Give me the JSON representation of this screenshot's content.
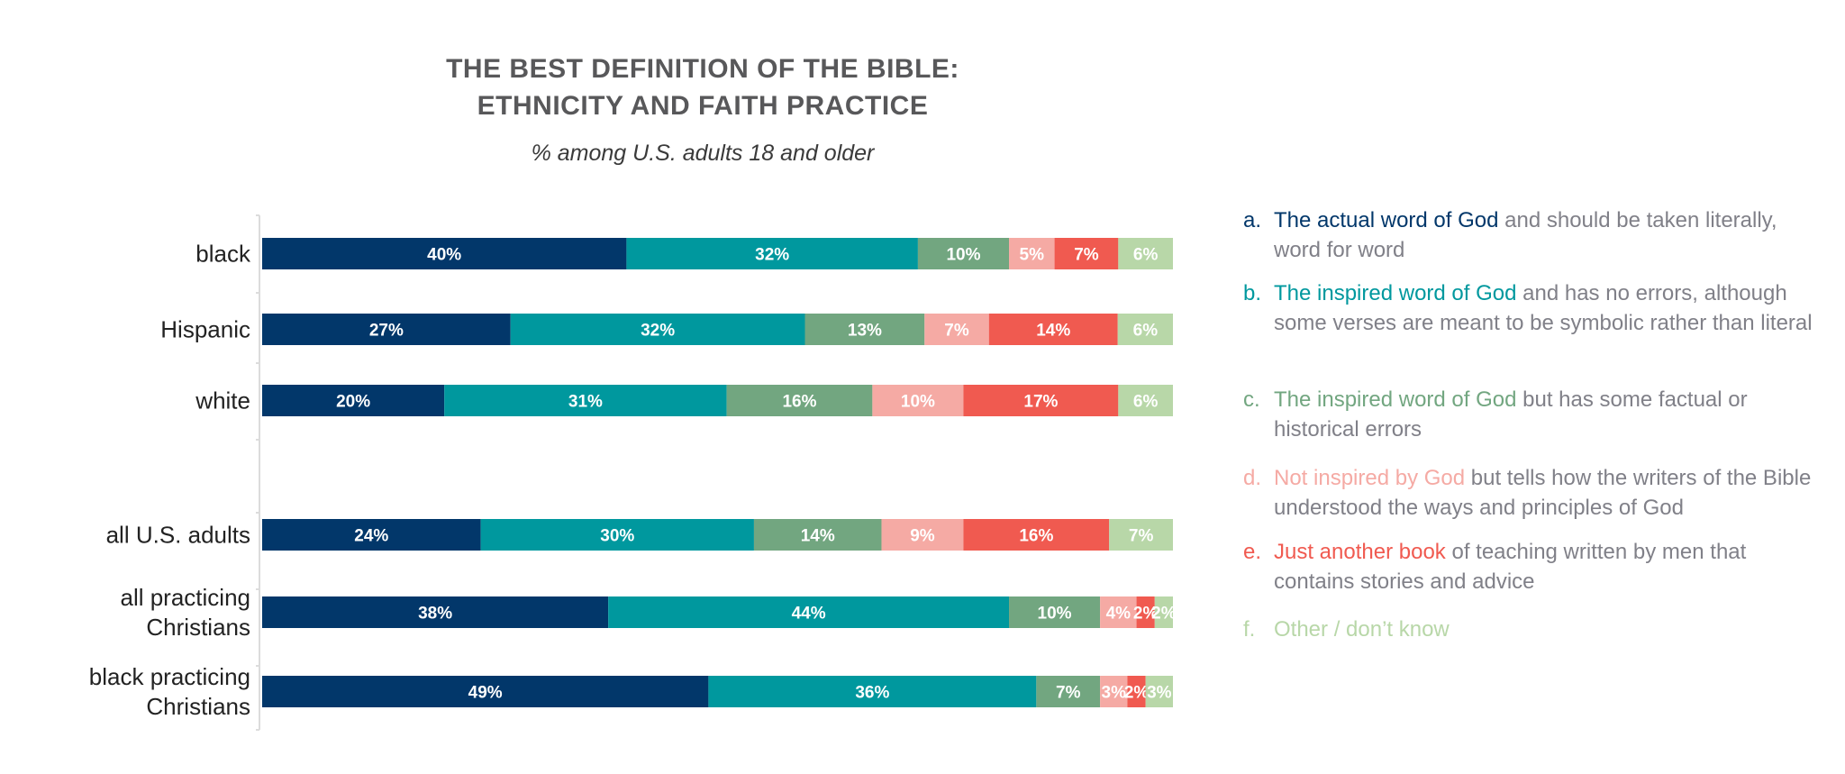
{
  "chart_data": {
    "type": "bar",
    "orientation": "horizontal",
    "stacked": true,
    "title": [
      "THE BEST DEFINITION OF THE BIBLE:",
      "ETHNICITY AND FAITH PRACTICE"
    ],
    "subtitle": "% among U.S. adults 18 and older",
    "categories": [
      [
        "black"
      ],
      [
        "Hispanic"
      ],
      [
        "white"
      ],
      [
        "all U.S. adults"
      ],
      [
        "all practicing",
        "Christians"
      ],
      [
        "black practicing",
        "Christians"
      ]
    ],
    "series": [
      {
        "letter": "a.",
        "name": "The actual word of God",
        "rest": " and should be taken literally, word for word",
        "color": "#02376a",
        "values": [
          40,
          27,
          20,
          24,
          38,
          49
        ]
      },
      {
        "letter": "b.",
        "name": "The inspired word of God",
        "rest": " and has no errors, although some verses are meant to be symbolic rather than literal",
        "color": "#00989e",
        "values": [
          32,
          32,
          31,
          30,
          44,
          36
        ]
      },
      {
        "letter": "c.",
        "name": "The inspired word of God",
        "rest": " but has some factual or historical errors",
        "color": "#72a680",
        "values": [
          10,
          13,
          16,
          14,
          10,
          7
        ]
      },
      {
        "letter": "d.",
        "name": "Not inspired by God",
        "rest": " but tells how the writers of the Bible understood the ways and principles of God",
        "color": "#f5aaa4",
        "values": [
          5,
          7,
          10,
          9,
          4,
          3
        ]
      },
      {
        "letter": "e.",
        "name": "Just another book",
        "rest": " of teaching written by men that contains stories and advice",
        "color": "#f05a50",
        "values": [
          7,
          14,
          17,
          16,
          2,
          2
        ]
      },
      {
        "letter": "f.",
        "name": "Other / don’t know",
        "rest": "",
        "color": "#b8d7a8",
        "values": [
          6,
          6,
          6,
          7,
          2,
          3
        ]
      }
    ],
    "value_suffix": "%",
    "legend_position": "right",
    "grid": false
  }
}
